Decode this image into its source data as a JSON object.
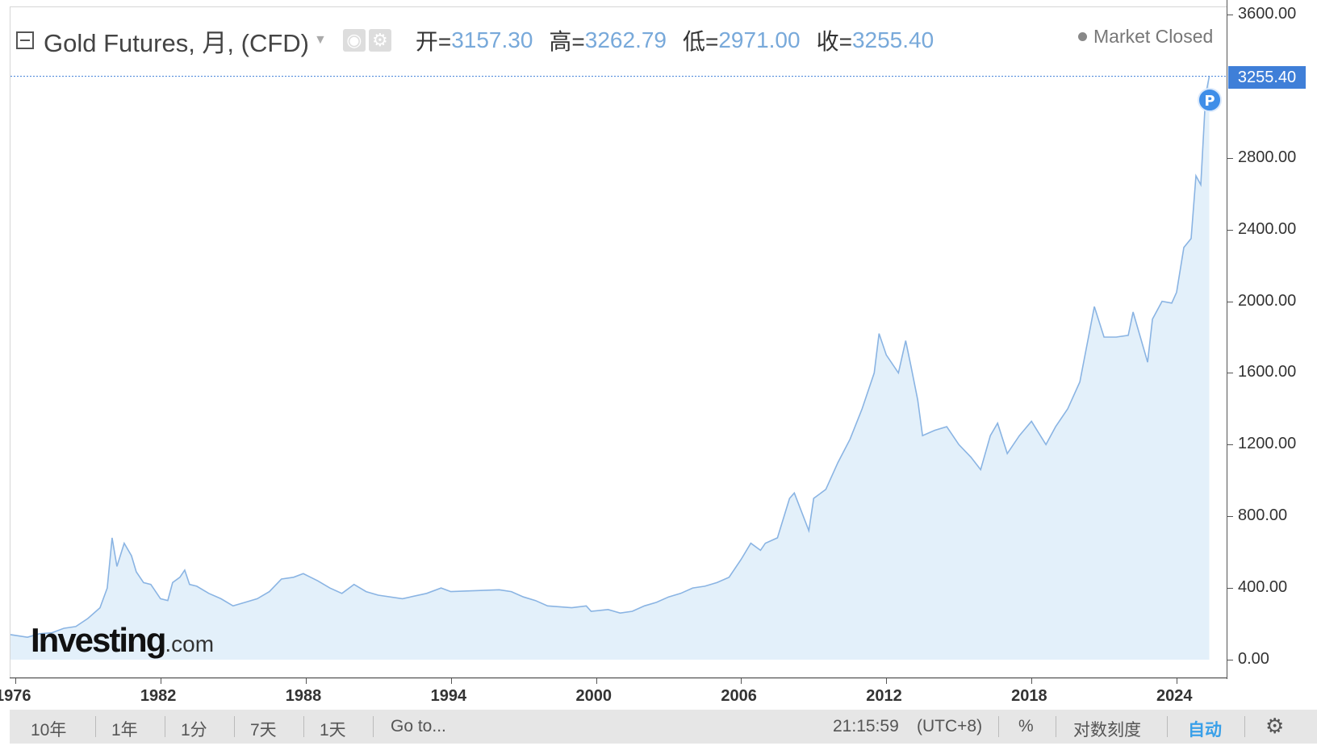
{
  "header": {
    "symbol": "Gold Futures, 月, (CFD)",
    "open_label": "开=",
    "open_value": "3157.30",
    "high_label": "高=",
    "high_value": "3262.79",
    "low_label": "低=",
    "low_value": "2971.00",
    "close_label": "收=",
    "close_value": "3255.40",
    "market_status": "Market Closed"
  },
  "last_price_label": "3255.40",
  "marker_label": "P",
  "logo": {
    "main": "Investing",
    "suffix": ".com"
  },
  "bottom_bar": {
    "range_buttons": [
      "10年",
      "1年",
      "1分",
      "7天",
      "1天"
    ],
    "goto": "Go to...",
    "time": "21:15:59",
    "timezone": "(UTC+8)",
    "percent": "%",
    "log_scale": "对数刻度",
    "auto": "自动"
  },
  "colors": {
    "line": "#8ab4e3",
    "fill": "#e3f0fa",
    "price_tag": "#3f7fd8",
    "active": "#39a0e9"
  },
  "icons": [
    "collapse-icon",
    "dropdown-icon",
    "eye-icon",
    "gear-icon",
    "settings-gear-icon"
  ],
  "chart_data": {
    "type": "area",
    "title": "Gold Futures, 月, (CFD)",
    "xlabel": "",
    "ylabel": "",
    "x_ticks": [
      "1976",
      "1982",
      "1988",
      "1994",
      "2000",
      "2006",
      "2012",
      "2018",
      "2024"
    ],
    "y_ticks": [
      "3600.00",
      "2800.00",
      "2400.00",
      "2000.00",
      "1600.00",
      "1200.00",
      "800.00",
      "400.00",
      "0.00"
    ],
    "ylim": [
      0,
      3600
    ],
    "xlim": [
      1975.8,
      2025.5
    ],
    "grid": false,
    "series": [
      {
        "x": [
          1975.8,
          1976.5,
          1977.0,
          1977.5,
          1978.0,
          1978.5,
          1979.0,
          1979.5,
          1979.8,
          1980.0,
          1980.2,
          1980.5,
          1980.8,
          1981.0,
          1981.3,
          1981.6,
          1982.0,
          1982.3,
          1982.5,
          1982.8,
          1983.0,
          1983.2,
          1983.5,
          1984.0,
          1984.5,
          1985.0,
          1985.5,
          1986.0,
          1986.5,
          1987.0,
          1987.5,
          1987.9,
          1988.5,
          1989.0,
          1989.5,
          1990.0,
          1990.5,
          1991.0,
          1992.0,
          1993.0,
          1993.6,
          1994.0,
          1995.0,
          1996.0,
          1996.5,
          1997.0,
          1997.5,
          1998.0,
          1999.0,
          1999.6,
          1999.8,
          2000.5,
          2001.0,
          2001.5,
          2002.0,
          2002.5,
          2003.0,
          2003.5,
          2004.0,
          2004.5,
          2005.0,
          2005.5,
          2006.0,
          2006.4,
          2006.8,
          2007.0,
          2007.5,
          2008.0,
          2008.2,
          2008.8,
          2009.0,
          2009.5,
          2010.0,
          2010.5,
          2011.0,
          2011.5,
          2011.7,
          2012.0,
          2012.5,
          2012.8,
          2013.0,
          2013.3,
          2013.5,
          2014.0,
          2014.5,
          2015.0,
          2015.5,
          2015.9,
          2016.3,
          2016.6,
          2017.0,
          2017.5,
          2018.0,
          2018.6,
          2019.0,
          2019.5,
          2020.0,
          2020.6,
          2021.0,
          2021.5,
          2022.0,
          2022.2,
          2022.8,
          2023.0,
          2023.4,
          2023.8,
          2024.0,
          2024.3,
          2024.6,
          2024.8,
          2025.0,
          2025.2,
          2025.35
        ],
        "y": [
          140,
          125,
          145,
          150,
          175,
          185,
          230,
          290,
          400,
          680,
          520,
          650,
          580,
          490,
          430,
          420,
          340,
          330,
          430,
          460,
          500,
          420,
          410,
          370,
          340,
          300,
          320,
          340,
          380,
          450,
          460,
          480,
          440,
          400,
          370,
          420,
          380,
          360,
          340,
          370,
          400,
          380,
          385,
          390,
          380,
          350,
          330,
          300,
          290,
          300,
          270,
          280,
          260,
          270,
          300,
          320,
          350,
          370,
          400,
          410,
          430,
          460,
          560,
          650,
          610,
          650,
          680,
          900,
          930,
          720,
          900,
          950,
          1100,
          1230,
          1400,
          1600,
          1820,
          1700,
          1600,
          1780,
          1650,
          1450,
          1250,
          1280,
          1300,
          1200,
          1130,
          1060,
          1250,
          1320,
          1150,
          1250,
          1330,
          1200,
          1300,
          1400,
          1550,
          1970,
          1800,
          1800,
          1810,
          1940,
          1660,
          1900,
          2000,
          1990,
          2050,
          2300,
          2350,
          2700,
          2650,
          3150,
          3255
        ]
      }
    ]
  }
}
